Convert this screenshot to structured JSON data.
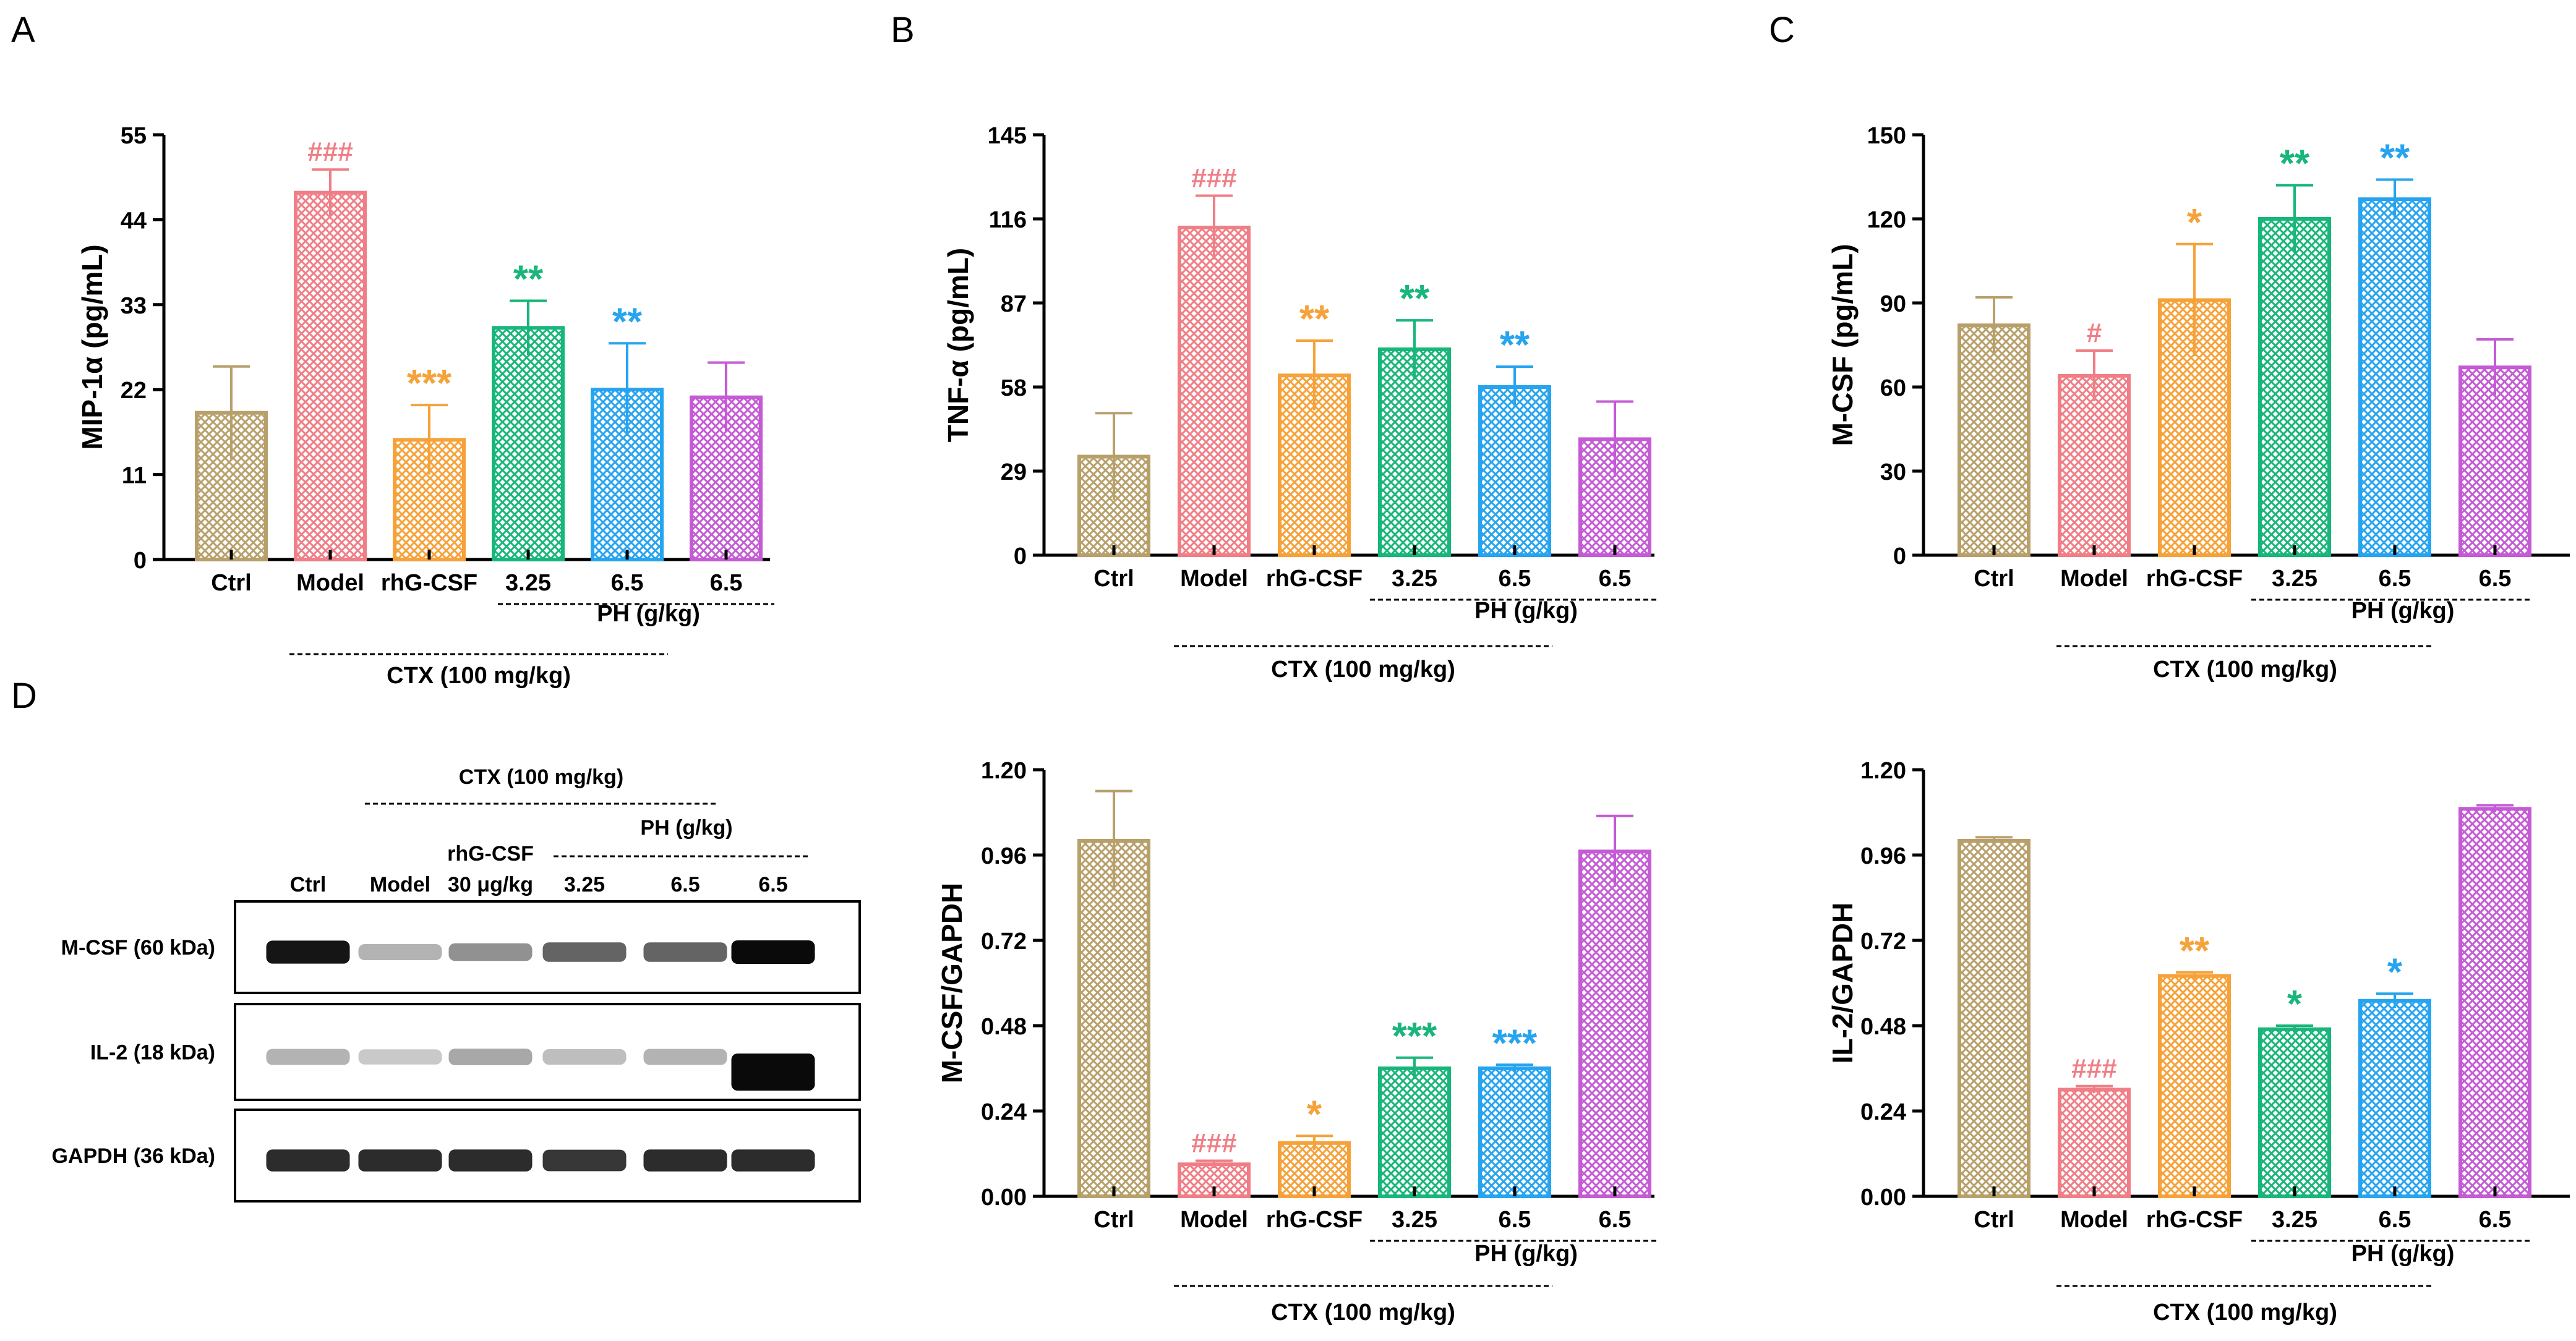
{
  "colors": {
    "ctrl": "#b8a06b",
    "model": "#f07e86",
    "rhg": "#f6a23a",
    "ph325": "#18b67a",
    "ph65a": "#26a4ef",
    "ph65b": "#c45bd5"
  },
  "group_labels": {
    "ph": "PH (g/kg)",
    "ctx": "CTX (100 mg/kg)"
  },
  "chart_data": [
    {
      "panel_label": "A",
      "type": "bar",
      "ylabel": "MIP-1α (pg/mL)",
      "ylim": [
        0,
        55
      ],
      "yticks": [
        "0",
        "11",
        "22",
        "33",
        "44",
        "55"
      ],
      "categories": [
        "Ctrl",
        "Model",
        "rhG-CSF",
        "3.25",
        "6.5",
        "6.5"
      ],
      "values": [
        19,
        47.5,
        15.5,
        30,
        22,
        21
      ],
      "errors": [
        6,
        3,
        4.5,
        3.5,
        6,
        4.5
      ],
      "annotations": [
        "",
        "###",
        "***",
        "**",
        "**",
        ""
      ]
    },
    {
      "panel_label": "B",
      "type": "bar",
      "ylabel": "TNF-α (pg/mL)",
      "ylim": [
        0,
        145
      ],
      "yticks": [
        "0",
        "29",
        "58",
        "87",
        "116",
        "145"
      ],
      "categories": [
        "Ctrl",
        "Model",
        "rhG-CSF",
        "3.25",
        "6.5",
        "6.5"
      ],
      "values": [
        34,
        113,
        62,
        71,
        58,
        40
      ],
      "errors": [
        15,
        11,
        12,
        10,
        7,
        13
      ],
      "annotations": [
        "",
        "###",
        "**",
        "**",
        "**",
        ""
      ]
    },
    {
      "panel_label": "C",
      "type": "bar",
      "ylabel": "M-CSF (pg/mL)",
      "ylim": [
        0,
        150
      ],
      "yticks": [
        "0",
        "30",
        "60",
        "90",
        "120",
        "150"
      ],
      "categories": [
        "Ctrl",
        "Model",
        "rhG-CSF",
        "3.25",
        "6.5",
        "6.5"
      ],
      "values": [
        82,
        64,
        91,
        120,
        127,
        67
      ],
      "errors": [
        10,
        9,
        20,
        12,
        7,
        10
      ],
      "annotations": [
        "",
        "#",
        "*",
        "**",
        "**",
        ""
      ]
    },
    {
      "type": "bar",
      "ylabel": "M-CSF/GAPDH",
      "ylim": [
        0,
        1.2
      ],
      "yticks": [
        "0.00",
        "0.24",
        "0.48",
        "0.72",
        "0.96",
        "1.20"
      ],
      "categories": [
        "Ctrl",
        "Model",
        "rhG-CSF",
        "3.25",
        "6.5",
        "6.5"
      ],
      "values": [
        1.0,
        0.09,
        0.15,
        0.36,
        0.36,
        0.97
      ],
      "errors": [
        0.14,
        0.01,
        0.02,
        0.03,
        0.01,
        0.1
      ],
      "annotations": [
        "",
        "###",
        "*",
        "***",
        "***",
        ""
      ]
    },
    {
      "type": "bar",
      "ylabel": "IL-2/GAPDH",
      "ylim": [
        0,
        1.2
      ],
      "yticks": [
        "0.00",
        "0.24",
        "0.48",
        "0.72",
        "0.96",
        "1.20"
      ],
      "categories": [
        "Ctrl",
        "Model",
        "rhG-CSF",
        "3.25",
        "6.5",
        "6.5"
      ],
      "values": [
        1.0,
        0.3,
        0.62,
        0.47,
        0.55,
        1.09
      ],
      "errors": [
        0.01,
        0.01,
        0.01,
        0.01,
        0.02,
        0.01
      ],
      "annotations": [
        "",
        "###",
        "**",
        "*",
        "*",
        ""
      ]
    }
  ],
  "western_blot": {
    "panel_label": "D",
    "ctx_label": "CTX (100 mg/kg)",
    "ph_label": "PH (g/kg)",
    "lanes": [
      "Ctrl",
      "Model",
      "rhG-CSF",
      "3.25",
      "6.5",
      "6.5"
    ],
    "rhg_dose": "30 μg/kg",
    "rows": [
      {
        "label": "M-CSF (60 kDa)",
        "intensities": [
          0.95,
          0.25,
          0.4,
          0.6,
          0.6,
          1.0
        ]
      },
      {
        "label": "IL-2 (18 kDa)",
        "intensities": [
          0.25,
          0.15,
          0.3,
          0.2,
          0.25,
          1.0
        ]
      },
      {
        "label": "GAPDH (36 kDa)",
        "intensities": [
          0.85,
          0.85,
          0.85,
          0.8,
          0.85,
          0.85
        ]
      }
    ]
  }
}
